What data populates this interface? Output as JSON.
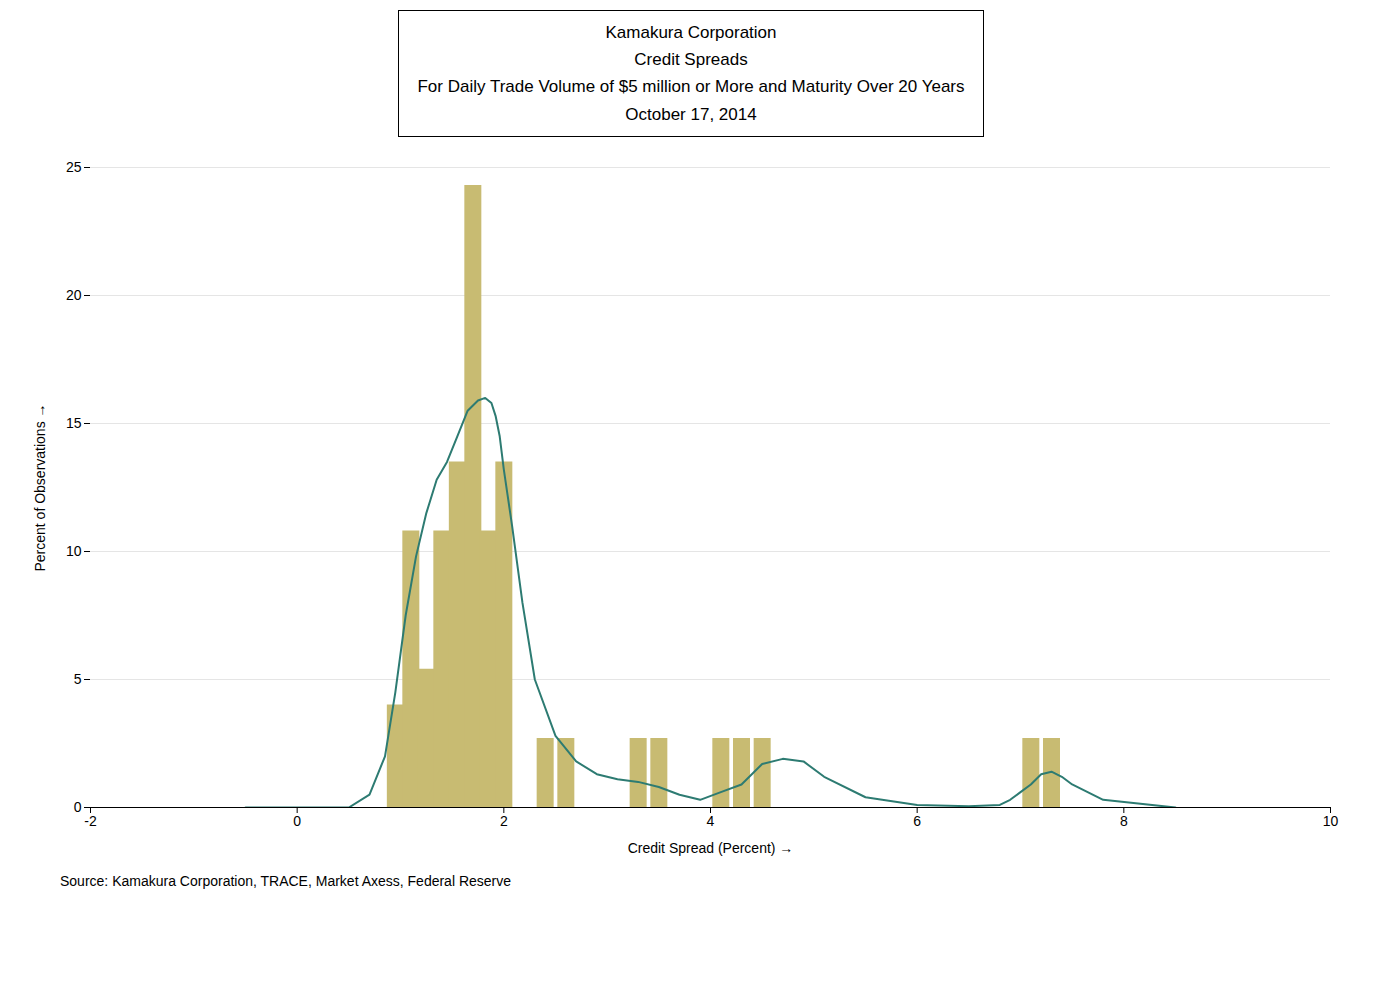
{
  "chart_data": {
    "type": "bar",
    "title": [
      "Kamakura Corporation",
      "Credit Spreads",
      "For Daily Trade Volume of $5 million or More and Maturity Over 20 Years",
      "October 17, 2014"
    ],
    "source": "Source: Kamakura Corporation, TRACE, Market Axess, Federal Reserve",
    "xlabel": "Credit Spread (Percent)",
    "ylabel": "Percent of Observations",
    "xlim": [
      -2,
      10
    ],
    "xticks": [
      -2,
      0,
      2,
      4,
      6,
      8,
      10
    ],
    "ylim": [
      0,
      25
    ],
    "yticks": [
      0,
      5,
      10,
      15,
      20,
      25
    ],
    "grid": true,
    "series": [
      {
        "type": "bar",
        "color": "#c8bb72",
        "x": [
          0.95,
          1.1,
          1.25,
          1.4,
          1.55,
          1.7,
          1.85,
          2.0,
          2.4,
          2.6,
          3.3,
          3.5,
          4.1,
          4.3,
          4.5,
          7.1,
          7.3
        ],
        "values": [
          4.0,
          10.8,
          5.4,
          10.8,
          13.5,
          24.3,
          10.8,
          13.5,
          2.7,
          2.7,
          2.7,
          2.7,
          2.7,
          2.7,
          2.7,
          2.7,
          2.7
        ]
      },
      {
        "type": "line",
        "color": "#2d7b72",
        "x": [
          -0.5,
          0.5,
          0.7,
          0.85,
          0.95,
          1.05,
          1.15,
          1.25,
          1.35,
          1.45,
          1.55,
          1.65,
          1.75,
          1.82,
          1.88,
          1.92,
          1.96,
          2.0,
          2.08,
          2.18,
          2.3,
          2.5,
          2.7,
          2.9,
          3.1,
          3.3,
          3.5,
          3.7,
          3.9,
          4.1,
          4.3,
          4.5,
          4.7,
          4.9,
          5.1,
          5.5,
          6.0,
          6.5,
          6.8,
          6.9,
          7.0,
          7.1,
          7.2,
          7.3,
          7.4,
          7.5,
          7.8,
          8.5
        ],
        "values": [
          0.0,
          0.0,
          0.5,
          2.0,
          4.5,
          7.5,
          9.8,
          11.5,
          12.8,
          13.5,
          14.5,
          15.5,
          15.9,
          16.0,
          15.8,
          15.3,
          14.5,
          13.2,
          11.0,
          8.0,
          5.0,
          2.8,
          1.8,
          1.3,
          1.1,
          1.0,
          0.8,
          0.5,
          0.3,
          0.6,
          0.9,
          1.7,
          1.9,
          1.8,
          1.2,
          0.4,
          0.1,
          0.05,
          0.1,
          0.3,
          0.6,
          0.9,
          1.3,
          1.4,
          1.2,
          0.9,
          0.3,
          0.0
        ]
      }
    ]
  }
}
